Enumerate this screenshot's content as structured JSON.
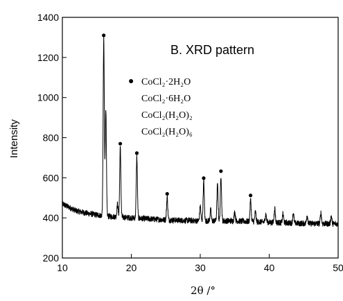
{
  "chart_data": {
    "type": "line",
    "title": "B. XRD pattern",
    "xlabel": "2θ /°",
    "ylabel": "Intensity",
    "xlim": [
      10,
      50
    ],
    "ylim": [
      200,
      1400
    ],
    "xticks": [
      "10",
      "20",
      "30",
      "40",
      "50"
    ],
    "yticks": [
      "200",
      "400",
      "600",
      "800",
      "1000",
      "1200",
      "1400"
    ],
    "grid": false,
    "legend": {
      "position": "top-right",
      "marker": "●",
      "entries": [
        "CoCl₂·2H₂O",
        "CoCl₂·6H₂O",
        "CoCl₂(H₂O)₂",
        "CoCl₂(H₂O)₆"
      ]
    },
    "series": [
      {
        "color": "#000000",
        "baseline": [
          [
            10,
            470
          ],
          [
            12,
            435
          ],
          [
            14,
            420
          ],
          [
            16,
            410
          ],
          [
            20,
            400
          ],
          [
            25,
            390
          ],
          [
            30,
            385
          ],
          [
            35,
            385
          ],
          [
            40,
            378
          ],
          [
            45,
            372
          ],
          [
            50,
            370
          ]
        ],
        "peaks": [
          {
            "x": 16.0,
            "y": 1290
          },
          {
            "x": 16.3,
            "y": 950
          },
          {
            "x": 18.0,
            "y": 470
          },
          {
            "x": 18.4,
            "y": 750
          },
          {
            "x": 20.8,
            "y": 705
          },
          {
            "x": 25.2,
            "y": 505
          },
          {
            "x": 30.0,
            "y": 460
          },
          {
            "x": 30.5,
            "y": 580
          },
          {
            "x": 31.5,
            "y": 440
          },
          {
            "x": 32.5,
            "y": 565
          },
          {
            "x": 33.0,
            "y": 612
          },
          {
            "x": 35.0,
            "y": 430
          },
          {
            "x": 37.3,
            "y": 490
          },
          {
            "x": 38.0,
            "y": 430
          },
          {
            "x": 39.5,
            "y": 420
          },
          {
            "x": 40.8,
            "y": 450
          },
          {
            "x": 42.0,
            "y": 420
          },
          {
            "x": 43.5,
            "y": 425
          },
          {
            "x": 45.5,
            "y": 415
          },
          {
            "x": 47.5,
            "y": 425
          },
          {
            "x": 49.0,
            "y": 410
          }
        ]
      }
    ],
    "marked_peaks": [
      {
        "x": 16.0,
        "y": 1310
      },
      {
        "x": 18.4,
        "y": 770
      },
      {
        "x": 20.8,
        "y": 723
      },
      {
        "x": 25.2,
        "y": 520
      },
      {
        "x": 30.5,
        "y": 598
      },
      {
        "x": 33.0,
        "y": 633
      },
      {
        "x": 37.3,
        "y": 512
      }
    ]
  }
}
